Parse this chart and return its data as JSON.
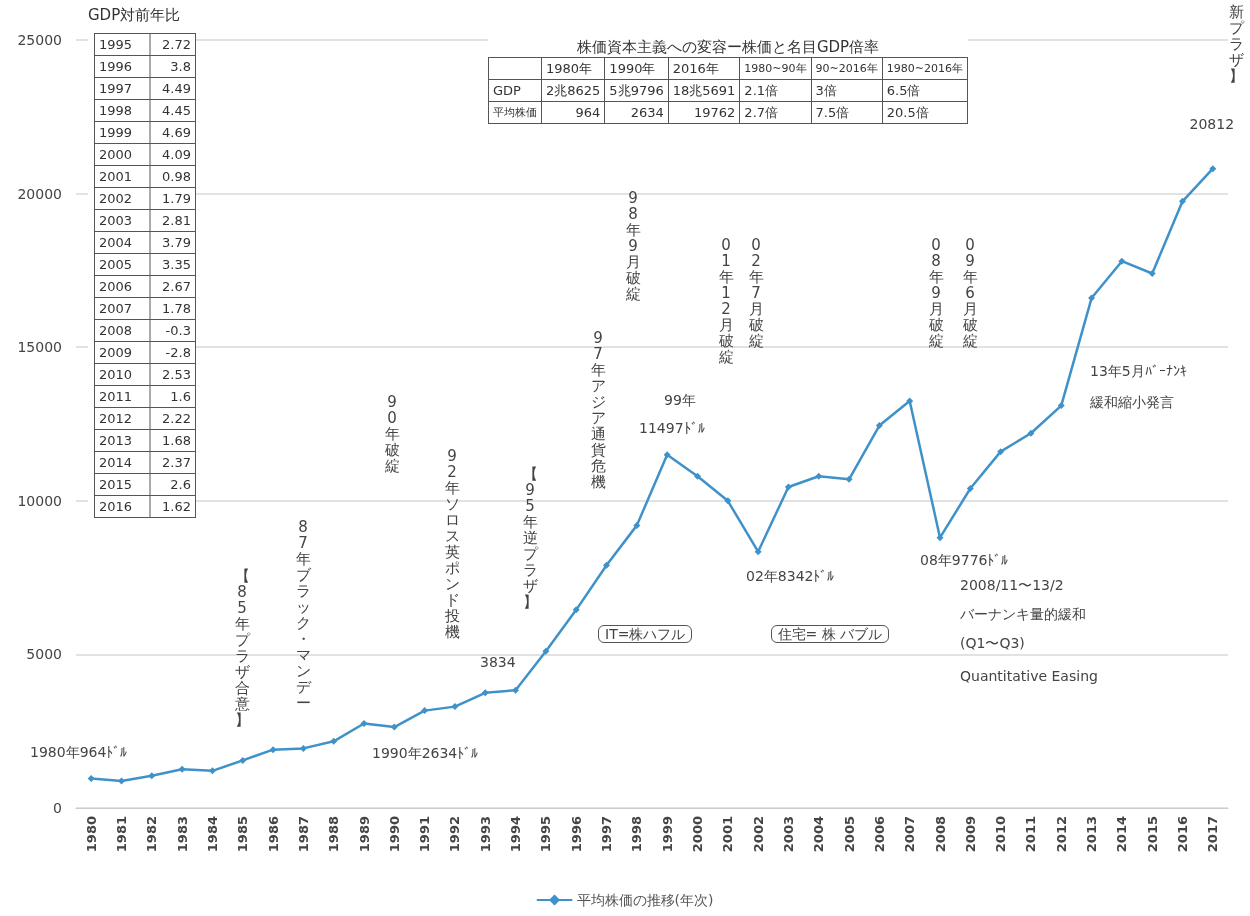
{
  "chart_data": [
    {
      "type": "line",
      "categories": [
        "1980",
        "1981",
        "1982",
        "1983",
        "1984",
        "1985",
        "1986",
        "1987",
        "1988",
        "1989",
        "1990",
        "1991",
        "1992",
        "1993",
        "1994",
        "1995",
        "1996",
        "1997",
        "1998",
        "1999",
        "2000",
        "2001",
        "2002",
        "2003",
        "2004",
        "2005",
        "2006",
        "2007",
        "2008",
        "2009",
        "2010",
        "2011",
        "2012",
        "2013",
        "2014",
        "2015",
        "2016",
        "2017"
      ],
      "series": [
        {
          "name": "平均株価の推移(年次)",
          "color": "#3f92c9",
          "values": [
            964,
            880,
            1050,
            1260,
            1210,
            1550,
            1900,
            1940,
            2170,
            2750,
            2634,
            3170,
            3300,
            3750,
            3834,
            5100,
            6450,
            7900,
            9200,
            11497,
            10800,
            10000,
            8342,
            10450,
            10800,
            10700,
            12450,
            13250,
            8800,
            10400,
            11600,
            12200,
            13100,
            16600,
            17800,
            17400,
            19750,
            20812
          ]
        }
      ],
      "ylim": [
        0,
        25000
      ],
      "yticks": [
        0,
        5000,
        10000,
        15000,
        20000,
        25000
      ],
      "grid": "y",
      "legend": "bottom",
      "marker": "diamond",
      "annotations": [
        "【85年プラザ合意】",
        "87年ブラック・マンデー",
        "90年破綻",
        "92年ソロス英ポンド投機",
        "【95年逆プラザ】",
        "97年アジア通貨危機",
        "98年9月破綻",
        "99年",
        "11497ﾄﾞﾙ",
        "01年12月破綻",
        "02年7月破綻",
        "02年8342ﾄﾞﾙ",
        "08年9月破綻",
        "09年6月破綻",
        "08年9776ﾄﾞﾙ",
        "2008/11〜13/2",
        "バーナンキ量的緩和",
        "(Q1〜Q3)",
        "Quantitative Easing",
        "13年5月ﾊﾞｰﾅﾝｷ",
        "緩和縮小発言",
        "20812",
        "3834",
        "1980年964ﾄﾞﾙ",
        "1990年2634ﾄﾞﾙ",
        "IT=株ハフル",
        "住宅= 株 バブル",
        "新プラザ】"
      ]
    },
    {
      "type": "other",
      "title": "GDP対前年比",
      "annotations": [
        "1995 2.72",
        "1996 3.8",
        "1997 4.49",
        "1998 4.45",
        "1999 4.69",
        "2000 4.09",
        "2001 0.98",
        "2002 1.79",
        "2003 2.81",
        "2004 3.79",
        "2005 3.35",
        "2006 2.67",
        "2007 1.78",
        "2008 -0.3",
        "2009 -2.8",
        "2010 2.53",
        "2011 1.6",
        "2012 2.22",
        "2013 1.68",
        "2014 2.37",
        "2015 2.6",
        "2016 1.62"
      ]
    },
    {
      "type": "other",
      "title": "株価資本主義への変容ー株価と名目GDP倍率",
      "annotations": [
        "1980年",
        "1990年",
        "2016年",
        "1980~90年",
        "90~2016年",
        "1980~2016年",
        "GDP",
        "2兆8625",
        "5兆9796",
        "18兆5691",
        "2.1倍",
        "3倍",
        "6.5倍",
        "平均株価",
        "964",
        "2634",
        "19762",
        "2.7倍",
        "7.5倍",
        "20.5倍"
      ]
    }
  ]
}
